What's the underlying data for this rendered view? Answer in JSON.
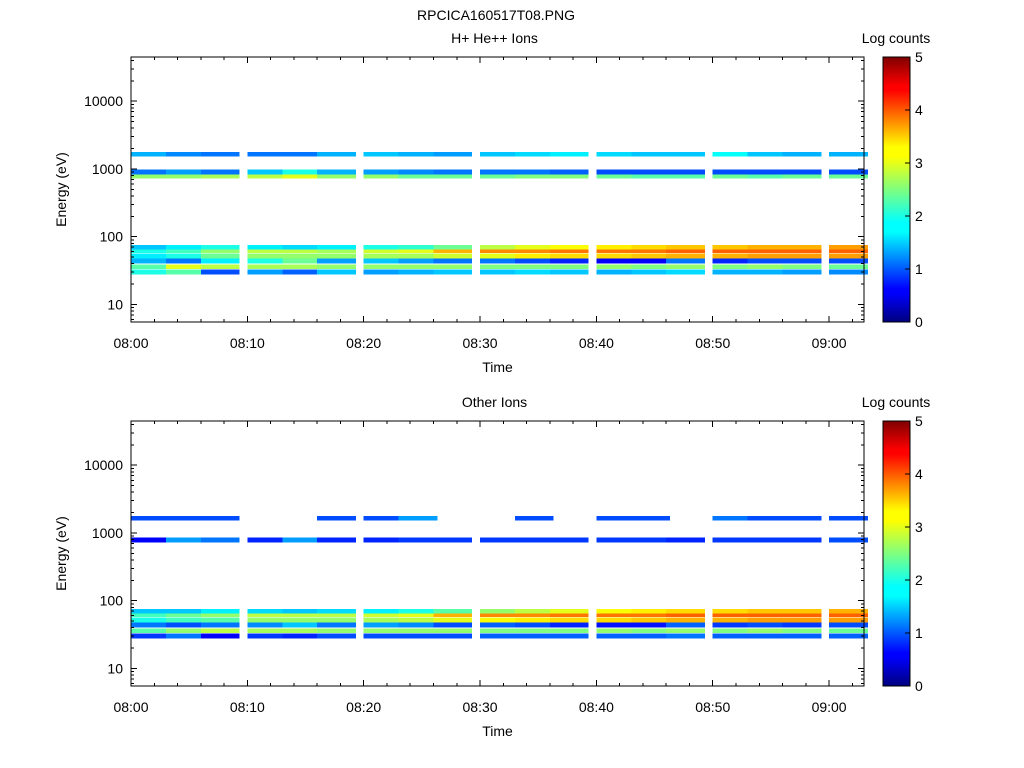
{
  "figure": {
    "title": "RPCICA160517T08.PNG"
  },
  "chart_data": [
    {
      "type": "heatmap",
      "title": "H+ He++ Ions",
      "xlabel": "Time",
      "ylabel": "Energy (eV)",
      "x_ticks": [
        "08:00",
        "08:10",
        "08:20",
        "08:30",
        "08:40",
        "08:50",
        "09:00"
      ],
      "y_ticks": [
        "10",
        "100",
        "1000",
        "10000"
      ],
      "xlim": [
        "08:00",
        "09:03"
      ],
      "ylim": [
        5.5,
        45000
      ],
      "yscale": "log",
      "colorbar": {
        "label": "Log counts",
        "ticks": [
          "0",
          "1",
          "2",
          "3",
          "4",
          "5"
        ],
        "range": [
          0,
          5
        ],
        "colormap": "jet"
      },
      "n_time_bins": 19,
      "time_bins": [
        "08:00",
        "08:03",
        "08:06",
        "08:10",
        "08:13",
        "08:16",
        "08:20",
        "08:23",
        "08:26",
        "08:30",
        "08:33",
        "08:36",
        "08:40",
        "08:43",
        "08:46",
        "08:50",
        "08:53",
        "08:56",
        "09:00"
      ],
      "energy_bands": [
        {
          "energy_eV": 30,
          "values": [
            2.0,
            2.3,
            1.0,
            1.4,
            1.1,
            1.6,
            1.4,
            1.5,
            1.6,
            1.6,
            1.7,
            1.6,
            1.5,
            1.6,
            1.7,
            1.5,
            1.5,
            1.4,
            1.3
          ]
        },
        {
          "energy_eV": 36,
          "values": [
            2.3,
            3.0,
            2.8,
            2.7,
            2.7,
            2.6,
            2.6,
            2.6,
            2.6,
            2.5,
            2.5,
            2.5,
            2.6,
            2.5,
            2.6,
            2.5,
            2.6,
            2.5,
            2.4
          ]
        },
        {
          "energy_eV": 44,
          "values": [
            1.5,
            1.2,
            1.8,
            2.0,
            2.4,
            1.4,
            1.6,
            1.4,
            1.2,
            1.2,
            1.0,
            0.8,
            0.6,
            0.6,
            1.2,
            0.8,
            1.0,
            1.0,
            1.0
          ]
        },
        {
          "energy_eV": 52,
          "values": [
            1.8,
            2.0,
            2.4,
            2.6,
            2.6,
            2.6,
            2.7,
            2.7,
            2.9,
            3.0,
            3.2,
            3.3,
            3.3,
            3.4,
            3.5,
            3.5,
            3.6,
            3.6,
            3.6
          ]
        },
        {
          "energy_eV": 62,
          "values": [
            2.0,
            2.2,
            2.6,
            2.8,
            2.8,
            2.7,
            2.9,
            3.0,
            3.5,
            3.7,
            3.7,
            3.8,
            3.8,
            3.8,
            3.9,
            3.9,
            3.9,
            3.9,
            3.9
          ]
        },
        {
          "energy_eV": 70,
          "values": [
            1.6,
            1.8,
            2.0,
            1.8,
            1.7,
            1.8,
            2.0,
            2.1,
            2.4,
            2.8,
            3.0,
            3.1,
            3.2,
            3.3,
            3.4,
            3.4,
            3.5,
            3.5,
            3.6
          ]
        },
        {
          "energy_eV": 790,
          "values": [
            2.6,
            2.6,
            2.7,
            2.8,
            3.0,
            2.6,
            2.6,
            2.4,
            2.4,
            2.4,
            2.5,
            2.5,
            2.4,
            2.3,
            2.3,
            2.4,
            2.3,
            2.4,
            2.4
          ]
        },
        {
          "energy_eV": 900,
          "values": [
            1.2,
            1.4,
            1.2,
            1.6,
            2.0,
            1.5,
            1.4,
            1.3,
            1.2,
            1.2,
            1.2,
            1.1,
            1.0,
            1.0,
            1.0,
            1.0,
            1.0,
            1.0,
            1.0
          ]
        },
        {
          "energy_eV": 1650,
          "values": [
            1.5,
            1.3,
            1.2,
            1.2,
            1.2,
            1.5,
            1.6,
            1.5,
            1.4,
            1.6,
            1.7,
            1.8,
            1.7,
            1.6,
            1.6,
            1.9,
            1.6,
            1.5,
            1.5
          ]
        }
      ]
    },
    {
      "type": "heatmap",
      "title": "Other Ions",
      "xlabel": "Time",
      "ylabel": "Energy (eV)",
      "x_ticks": [
        "08:00",
        "08:10",
        "08:20",
        "08:30",
        "08:40",
        "08:50",
        "09:00"
      ],
      "y_ticks": [
        "10",
        "100",
        "1000",
        "10000"
      ],
      "xlim": [
        "08:00",
        "09:03"
      ],
      "ylim": [
        5.5,
        45000
      ],
      "yscale": "log",
      "colorbar": {
        "label": "Log counts",
        "ticks": [
          "0",
          "1",
          "2",
          "3",
          "4",
          "5"
        ],
        "range": [
          0,
          5
        ],
        "colormap": "jet"
      },
      "n_time_bins": 19,
      "time_bins": [
        "08:00",
        "08:03",
        "08:06",
        "08:10",
        "08:13",
        "08:16",
        "08:20",
        "08:23",
        "08:26",
        "08:30",
        "08:33",
        "08:36",
        "08:40",
        "08:43",
        "08:46",
        "08:50",
        "08:53",
        "08:56",
        "09:00"
      ],
      "energy_bands": [
        {
          "energy_eV": 30,
          "values": [
            0.9,
            1.2,
            0.6,
            0.9,
            0.8,
            1.0,
            1.0,
            1.0,
            1.0,
            1.1,
            1.1,
            1.1,
            1.1,
            1.1,
            1.2,
            1.1,
            1.1,
            1.1,
            1.1
          ]
        },
        {
          "energy_eV": 36,
          "values": [
            2.3,
            2.6,
            2.8,
            2.7,
            2.7,
            2.6,
            2.6,
            2.6,
            2.6,
            2.5,
            2.5,
            2.5,
            2.6,
            2.5,
            2.6,
            2.5,
            2.6,
            2.5,
            2.4
          ]
        },
        {
          "energy_eV": 44,
          "values": [
            1.2,
            1.0,
            1.2,
            1.3,
            1.6,
            1.2,
            1.4,
            1.3,
            1.0,
            1.1,
            1.0,
            0.8,
            0.7,
            0.7,
            1.1,
            0.9,
            1.0,
            0.9,
            1.0
          ]
        },
        {
          "energy_eV": 52,
          "values": [
            2.0,
            2.2,
            2.3,
            2.6,
            2.6,
            2.6,
            2.7,
            2.8,
            3.0,
            3.1,
            3.2,
            3.3,
            3.3,
            3.4,
            3.5,
            3.5,
            3.6,
            3.6,
            3.6
          ]
        },
        {
          "energy_eV": 62,
          "values": [
            2.2,
            2.4,
            2.6,
            2.8,
            2.8,
            2.8,
            2.9,
            3.0,
            3.5,
            3.7,
            3.7,
            3.8,
            3.8,
            3.8,
            3.9,
            3.9,
            3.9,
            3.9,
            3.9
          ]
        },
        {
          "energy_eV": 70,
          "values": [
            1.6,
            1.6,
            1.8,
            1.7,
            1.6,
            1.7,
            1.8,
            2.0,
            2.3,
            2.6,
            2.8,
            3.0,
            3.1,
            3.2,
            3.3,
            3.3,
            3.4,
            3.4,
            3.5
          ]
        },
        {
          "energy_eV": 790,
          "values": [
            0.6,
            1.4,
            1.2,
            0.8,
            1.4,
            0.8,
            0.8,
            0.9,
            0.9,
            0.9,
            0.9,
            0.9,
            0.9,
            0.9,
            0.8,
            0.9,
            0.9,
            0.9,
            1.0
          ]
        },
        {
          "energy_eV": 1650,
          "values": [
            1.0,
            1.0,
            1.0,
            0,
            0,
            1.0,
            1.0,
            1.4,
            0,
            0,
            1.0,
            0,
            1.0,
            1.0,
            0,
            1.2,
            1.0,
            1.0,
            1.0
          ]
        }
      ]
    }
  ]
}
